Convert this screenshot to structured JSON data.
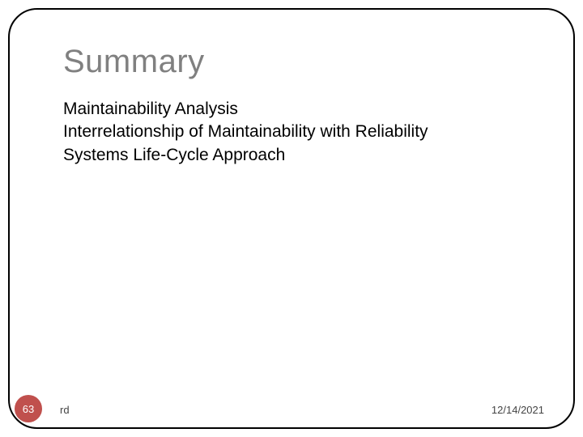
{
  "slide": {
    "title": "Summary",
    "body_lines": [
      "Maintainability Analysis",
      "Interrelationship of Maintainability with Reliability",
      "Systems Life-Cycle Approach"
    ],
    "number": "63",
    "author": "rd",
    "date": "12/14/2021"
  },
  "style": {
    "title_color": "#808080",
    "title_fontsize": 40,
    "body_color": "#000000",
    "body_fontsize": 21,
    "badge_bg": "#c0504d",
    "badge_text_color": "#ffffff",
    "frame_border_color": "#000000",
    "frame_border_radius": 36,
    "background_color": "#ffffff",
    "footer_color": "#444444",
    "footer_fontsize": 13
  }
}
